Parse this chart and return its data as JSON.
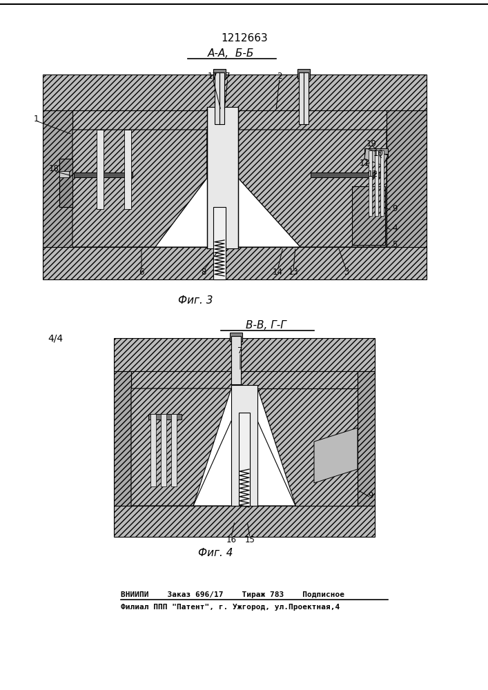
{
  "title": "1212663",
  "fig3_label": "А-А,  Б-Б",
  "fig3_caption": "Фиг. 3",
  "fig4_label": "В-В, Г-Г",
  "fig4_caption": "Фиг. 4",
  "footer_line1": "ВНИИПИ    Заказ 696/17    Тираж 783    Подписное",
  "footer_line2": "Филиал ППП \"Патент\", г. Ужгород, ул.Проектная,4",
  "bg_color": "#ffffff",
  "fig4_label_44": "4/4",
  "fc_hatch": "#cccccc",
  "fc_white": "#ffffff",
  "fc_dark": "#888888",
  "lc": "#000000"
}
